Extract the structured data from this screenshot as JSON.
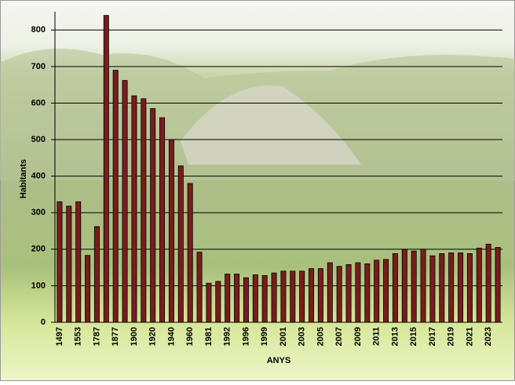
{
  "chart_data": {
    "type": "bar",
    "x_label": "ANYS",
    "y_label": "Habitants",
    "categories": [
      "1497",
      null,
      "1553",
      null,
      "1787",
      null,
      "1877",
      null,
      "1900",
      null,
      "1920",
      null,
      "1940",
      null,
      "1960",
      null,
      "1981",
      null,
      "1992",
      null,
      "1996",
      null,
      "1999",
      null,
      "2001",
      null,
      "2003",
      null,
      "2005",
      null,
      "2007",
      null,
      "2009",
      null,
      "2011",
      null,
      "2013",
      null,
      "2015",
      null,
      "2017",
      null,
      "2019",
      null,
      "2021",
      null,
      "2023",
      null
    ],
    "values": [
      330,
      318,
      330,
      183,
      262,
      840,
      690,
      662,
      620,
      612,
      585,
      560,
      500,
      428,
      380,
      192,
      107,
      112,
      132,
      132,
      122,
      130,
      128,
      135,
      140,
      140,
      140,
      147,
      147,
      163,
      153,
      158,
      163,
      160,
      170,
      172,
      188,
      200,
      195,
      200,
      182,
      188,
      190,
      190,
      188,
      203,
      214,
      205
    ],
    "color": "#7a1c1c",
    "ylim": [
      0,
      850
    ],
    "yticks": [
      0,
      100,
      200,
      300,
      400,
      500,
      600,
      700,
      800
    ],
    "grid": true
  }
}
